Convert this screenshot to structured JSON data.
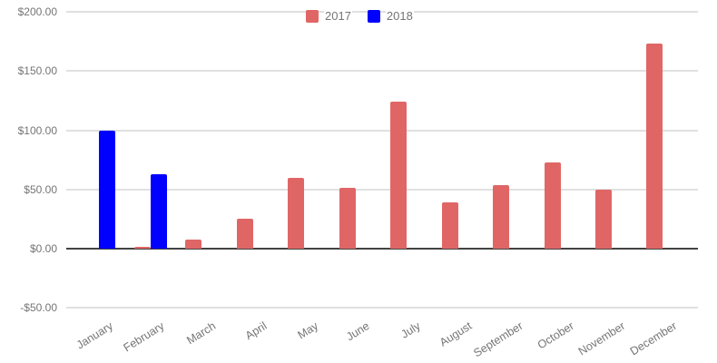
{
  "chart_data": {
    "type": "bar",
    "title": "",
    "xlabel": "",
    "ylabel": "",
    "categories": [
      "January",
      "February",
      "March",
      "April",
      "May",
      "June",
      "July",
      "August",
      "September",
      "October",
      "November",
      "December"
    ],
    "series": [
      {
        "name": "2017",
        "color": "#E06666",
        "values": [
          0,
          1.5,
          8,
          25,
          60,
          51,
          124,
          39,
          54,
          73,
          50,
          173
        ]
      },
      {
        "name": "2018",
        "color": "#0000FF",
        "values": [
          100,
          63,
          0,
          0,
          0,
          0,
          0,
          0,
          0,
          0,
          0,
          0
        ]
      }
    ],
    "ylim": [
      -50,
      200
    ],
    "y_ticks": [
      {
        "label": "$200.00",
        "value": 200
      },
      {
        "label": "$150.00",
        "value": 150
      },
      {
        "label": "$100.00",
        "value": 100
      },
      {
        "label": "$50.00",
        "value": 50
      },
      {
        "label": "$0.00",
        "value": 0
      },
      {
        "label": "-$50.00",
        "value": -50
      }
    ],
    "grid": true,
    "legend_position": "top-center",
    "x_label_rotation_deg": -32,
    "value_format": "currency"
  },
  "colors": {
    "background": "#ffffff",
    "axis_text": "#757575",
    "gridline": "#e0e0e0",
    "zero_line": "#424242",
    "series_2017": "#E06666",
    "series_2018": "#0000FF"
  }
}
